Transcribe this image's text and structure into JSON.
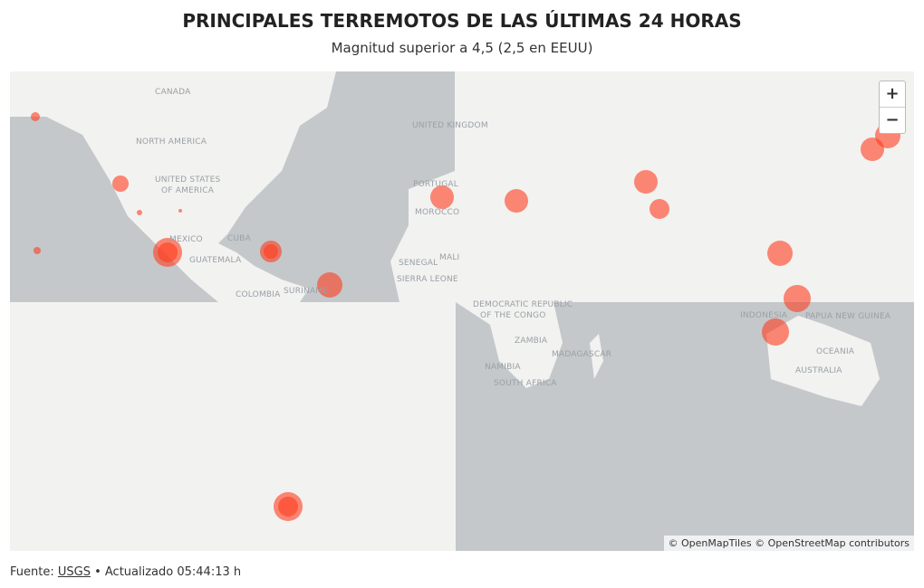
{
  "header": {
    "title": "PRINCIPALES TERREMOTOS DE LAS ÚLTIMAS 24 HORAS",
    "subtitle": "Magnitud superior a 4,5 (2,5 en EEUU)"
  },
  "map": {
    "labels": [
      "CANADA",
      "NORTH AMERICA",
      "UNITED STATES",
      "OF AMERICA",
      "MEXICO",
      "CUBA",
      "GUATEMALA",
      "COLOMBIA",
      "SURINAME",
      "UNITED KINGDOM",
      "PORTUGAL",
      "MOROCCO",
      "SENEGAL",
      "MALI",
      "SIERRA LEONE",
      "DEMOCRATIC REPUBLIC",
      "OF THE CONGO",
      "ZAMBIA",
      "MADAGASCAR",
      "NAMIBIA",
      "SOUTH AFRICA",
      "INDONESIA",
      "PAPUA NEW GUINEA",
      "OCEANIA",
      "AUSTRALIA"
    ],
    "zoom_in": "+",
    "zoom_out": "−",
    "attribution": "© OpenMapTiles © OpenStreetMap contributors"
  },
  "footer": {
    "prefix": "Fuente:",
    "source": "USGS",
    "updated": "• Actualizado 05:44:13 h"
  }
}
